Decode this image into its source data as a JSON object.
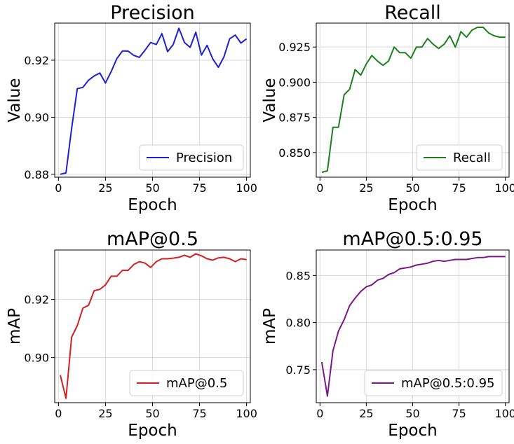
{
  "chart_data": [
    {
      "type": "line",
      "title": "Precision",
      "xlabel": "Epoch",
      "ylabel": "Value",
      "xlim": [
        -2,
        102
      ],
      "ylim": [
        0.879,
        0.933
      ],
      "xticks": [
        0,
        25,
        50,
        75,
        100
      ],
      "xtick_labels": [
        "0",
        "25",
        "50",
        "75",
        "100"
      ],
      "yticks": [
        0.88,
        0.9,
        0.92
      ],
      "ytick_labels": [
        "0.88",
        "0.90",
        "0.92"
      ],
      "grid": true,
      "legend": "bottom-right",
      "series": [
        {
          "name": "Precision",
          "color": "#1f1fd6",
          "x": [
            1,
            4,
            7,
            10,
            13,
            16,
            19,
            22,
            25,
            28,
            31,
            34,
            37,
            40,
            43,
            46,
            49,
            52,
            55,
            58,
            61,
            64,
            67,
            70,
            73,
            76,
            79,
            82,
            85,
            88,
            91,
            94,
            97,
            100
          ],
          "y": [
            0.88,
            0.8805,
            0.896,
            0.91,
            0.9105,
            0.913,
            0.9145,
            0.9155,
            0.912,
            0.916,
            0.9205,
            0.9232,
            0.9232,
            0.9217,
            0.921,
            0.9235,
            0.9262,
            0.9255,
            0.9293,
            0.923,
            0.9255,
            0.9312,
            0.9262,
            0.9245,
            0.9298,
            0.9218,
            0.9252,
            0.9205,
            0.9175,
            0.9212,
            0.9275,
            0.9288,
            0.926,
            0.9275
          ]
        }
      ]
    },
    {
      "type": "line",
      "title": "Recall",
      "xlabel": "Epoch",
      "ylabel": "Value",
      "xlim": [
        -2,
        102
      ],
      "ylim": [
        0.8325,
        0.942
      ],
      "xticks": [
        0,
        25,
        50,
        75,
        100
      ],
      "xtick_labels": [
        "0",
        "25",
        "50",
        "75",
        "100"
      ],
      "yticks": [
        0.85,
        0.875,
        0.9,
        0.925
      ],
      "ytick_labels": [
        "0.850",
        "0.875",
        "0.900",
        "0.925"
      ],
      "grid": true,
      "legend": "bottom-right",
      "series": [
        {
          "name": "Recall",
          "color": "#1d801d",
          "x": [
            1,
            4,
            7,
            10,
            13,
            16,
            19,
            22,
            25,
            28,
            31,
            34,
            37,
            40,
            43,
            46,
            49,
            52,
            55,
            58,
            61,
            64,
            67,
            70,
            73,
            76,
            79,
            82,
            85,
            88,
            91,
            94,
            97,
            100
          ],
          "y": [
            0.836,
            0.837,
            0.868,
            0.868,
            0.891,
            0.895,
            0.909,
            0.905,
            0.913,
            0.919,
            0.915,
            0.912,
            0.915,
            0.925,
            0.921,
            0.921,
            0.917,
            0.925,
            0.925,
            0.931,
            0.927,
            0.924,
            0.927,
            0.933,
            0.925,
            0.936,
            0.932,
            0.937,
            0.939,
            0.939,
            0.935,
            0.933,
            0.932,
            0.932
          ]
        }
      ]
    },
    {
      "type": "line",
      "title": "mAP@0.5",
      "xlabel": "Epoch",
      "ylabel": "mAP",
      "xlim": [
        -2,
        102
      ],
      "ylim": [
        0.8845,
        0.937
      ],
      "xticks": [
        0,
        25,
        50,
        75,
        100
      ],
      "xtick_labels": [
        "0",
        "25",
        "50",
        "75",
        "100"
      ],
      "yticks": [
        0.9,
        0.92
      ],
      "ytick_labels": [
        "0.90",
        "0.92"
      ],
      "grid": true,
      "legend": "bottom-right",
      "series": [
        {
          "name": "mAP@0.5",
          "color": "#d42020",
          "x": [
            1,
            4,
            7,
            10,
            13,
            16,
            19,
            22,
            25,
            28,
            31,
            34,
            37,
            40,
            43,
            46,
            49,
            52,
            55,
            58,
            61,
            64,
            67,
            70,
            73,
            76,
            79,
            82,
            85,
            88,
            91,
            94,
            97,
            100
          ],
          "y": [
            0.894,
            0.886,
            0.907,
            0.911,
            0.917,
            0.918,
            0.923,
            0.9235,
            0.925,
            0.928,
            0.928,
            0.93,
            0.93,
            0.932,
            0.933,
            0.9325,
            0.931,
            0.933,
            0.934,
            0.934,
            0.9342,
            0.9345,
            0.9352,
            0.9345,
            0.9357,
            0.935,
            0.934,
            0.9335,
            0.9343,
            0.9345,
            0.934,
            0.933,
            0.934,
            0.9337
          ]
        }
      ]
    },
    {
      "type": "line",
      "title": "mAP@0.5:0.95",
      "xlabel": "Epoch",
      "ylabel": "mAP",
      "xlim": [
        -2,
        102
      ],
      "ylim": [
        0.715,
        0.877
      ],
      "xticks": [
        0,
        25,
        50,
        75,
        100
      ],
      "xtick_labels": [
        "0",
        "25",
        "50",
        "75",
        "100"
      ],
      "yticks": [
        0.75,
        0.8,
        0.85
      ],
      "ytick_labels": [
        "0.75",
        "0.80",
        "0.85"
      ],
      "grid": true,
      "legend": "bottom-right",
      "series": [
        {
          "name": "mAP@0.5:0.95",
          "color": "#7a1a8a",
          "x": [
            1,
            4,
            7,
            10,
            13,
            16,
            19,
            22,
            25,
            28,
            31,
            34,
            37,
            40,
            43,
            46,
            49,
            52,
            55,
            58,
            61,
            64,
            67,
            70,
            73,
            76,
            79,
            82,
            85,
            88,
            91,
            94,
            97,
            100
          ],
          "y": [
            0.758,
            0.722,
            0.77,
            0.791,
            0.803,
            0.818,
            0.826,
            0.833,
            0.838,
            0.84,
            0.845,
            0.847,
            0.851,
            0.853,
            0.857,
            0.858,
            0.859,
            0.861,
            0.862,
            0.863,
            0.865,
            0.866,
            0.865,
            0.866,
            0.867,
            0.867,
            0.867,
            0.868,
            0.869,
            0.869,
            0.87,
            0.87,
            0.87,
            0.87
          ]
        }
      ]
    }
  ]
}
